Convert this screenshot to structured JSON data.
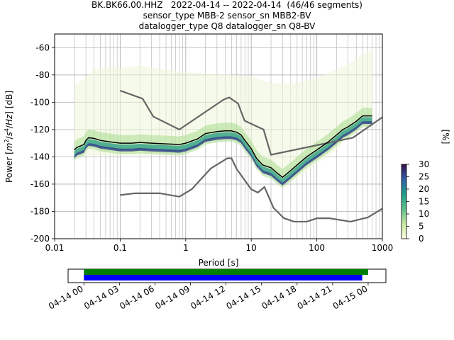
{
  "figure": {
    "title_lines": [
      "BK.BK66.00.HHZ   2022-04-14 -- 2022-04-14  (46/46 segments)",
      "sensor_type MBB-2 sensor_sn MBB2-BV",
      "datalogger_type Q8 datalogger_sn Q8-BV"
    ]
  },
  "chart_data": [
    {
      "type": "heatmap",
      "subtype": "probabilistic power spectral density",
      "xlabel": "Period [s]",
      "ylabel": "Power [$m^2/s^4/Hz$] [dB]",
      "x_scale": "log",
      "xlim": [
        0.01,
        1000
      ],
      "ylim": [
        -200,
        -50
      ],
      "x_tick_labels": [
        "0.01",
        "0.1",
        "1",
        "10",
        "100",
        "1000"
      ],
      "y_tick_labels": [
        "-200",
        "-180",
        "-160",
        "-140",
        "-120",
        "-100",
        "-80",
        "-60"
      ],
      "grid": true,
      "colorbar": {
        "label": "[%]",
        "range": [
          0,
          30
        ],
        "tick_labels": [
          "0",
          "5",
          "10",
          "15",
          "20",
          "25",
          "30"
        ],
        "colormap": "cubehelix reversed (light yellow-green to dark purple)"
      },
      "mode_curve": {
        "name": "mode",
        "color": "#000000",
        "points": [
          [
            0.02,
            -135
          ],
          [
            0.022,
            -133
          ],
          [
            0.025,
            -132
          ],
          [
            0.028,
            -131
          ],
          [
            0.03,
            -128
          ],
          [
            0.033,
            -126
          ],
          [
            0.04,
            -126.5
          ],
          [
            0.05,
            -128
          ],
          [
            0.07,
            -129
          ],
          [
            0.1,
            -130
          ],
          [
            0.15,
            -130
          ],
          [
            0.2,
            -129.5
          ],
          [
            0.3,
            -130
          ],
          [
            0.5,
            -130.5
          ],
          [
            0.8,
            -131
          ],
          [
            1.0,
            -130
          ],
          [
            1.5,
            -127
          ],
          [
            2.0,
            -123
          ],
          [
            3.0,
            -121.5
          ],
          [
            4.0,
            -121
          ],
          [
            5.0,
            -121
          ],
          [
            6.0,
            -122
          ],
          [
            7.0,
            -124
          ],
          [
            8.0,
            -128
          ],
          [
            10.0,
            -134
          ],
          [
            12.0,
            -141
          ],
          [
            15.0,
            -146
          ],
          [
            20.0,
            -148
          ],
          [
            25.0,
            -152
          ],
          [
            30.0,
            -155
          ],
          [
            40.0,
            -150
          ],
          [
            50.0,
            -146
          ],
          [
            70.0,
            -140
          ],
          [
            100.0,
            -135
          ],
          [
            150.0,
            -129
          ],
          [
            200.0,
            -124
          ],
          [
            250.0,
            -120
          ],
          [
            300.0,
            -118
          ],
          [
            400.0,
            -114
          ],
          [
            500.0,
            -110
          ],
          [
            700.0,
            -110
          ]
        ]
      },
      "noise_models": [
        {
          "name": "NHNM",
          "color": "#666666",
          "points": [
            [
              0.1,
              -91.5
            ],
            [
              0.22,
              -97.4
            ],
            [
              0.32,
              -110.5
            ],
            [
              0.8,
              -120
            ],
            [
              3.8,
              -98
            ],
            [
              4.6,
              -96.5
            ],
            [
              6.3,
              -101
            ],
            [
              7.9,
              -113.5
            ],
            [
              15.4,
              -120
            ],
            [
              20,
              -138.5
            ],
            [
              354.8,
              -126
            ],
            [
              1000,
              -111
            ]
          ]
        },
        {
          "name": "NLNM",
          "color": "#666666",
          "points": [
            [
              0.1,
              -168
            ],
            [
              0.17,
              -166.7
            ],
            [
              0.4,
              -166.7
            ],
            [
              0.8,
              -169.2
            ],
            [
              1.24,
              -163.7
            ],
            [
              2.4,
              -148.6
            ],
            [
              4.3,
              -141.1
            ],
            [
              5.0,
              -141.1
            ],
            [
              6.0,
              -149
            ],
            [
              10.0,
              -163.8
            ],
            [
              12.6,
              -166.2
            ],
            [
              15.9,
              -162.1
            ],
            [
              21.9,
              -177.5
            ],
            [
              31.6,
              -185
            ],
            [
              45,
              -187.5
            ],
            [
              70,
              -187.5
            ],
            [
              101,
              -185
            ],
            [
              154,
              -185
            ],
            [
              328,
              -187.5
            ],
            [
              600,
              -184.4
            ],
            [
              1000,
              -178
            ]
          ]
        }
      ],
      "density_band": {
        "name": "PSD histogram extent",
        "points_upper": [
          [
            0.02,
            -88
          ],
          [
            0.03,
            -82
          ],
          [
            0.04,
            -76
          ],
          [
            0.07,
            -74
          ],
          [
            0.1,
            -75
          ],
          [
            0.2,
            -73
          ],
          [
            0.5,
            -76
          ],
          [
            1,
            -78
          ],
          [
            2,
            -79
          ],
          [
            5,
            -80
          ],
          [
            10,
            -81
          ],
          [
            20,
            -86
          ],
          [
            30,
            -86
          ],
          [
            50,
            -86
          ],
          [
            100,
            -82
          ],
          [
            200,
            -76
          ],
          [
            300,
            -72
          ],
          [
            500,
            -65
          ],
          [
            700,
            -62
          ]
        ],
        "points_lower": [
          [
            0.02,
            -139
          ],
          [
            0.03,
            -139
          ],
          [
            0.05,
            -139
          ],
          [
            0.1,
            -139
          ],
          [
            0.3,
            -139
          ],
          [
            1,
            -138
          ],
          [
            2,
            -130
          ],
          [
            5,
            -127
          ],
          [
            8,
            -133
          ],
          [
            10,
            -138
          ],
          [
            15,
            -148
          ],
          [
            20,
            -152
          ],
          [
            30,
            -159
          ],
          [
            50,
            -156
          ],
          [
            100,
            -145
          ],
          [
            200,
            -135
          ],
          [
            300,
            -125
          ],
          [
            700,
            -114
          ]
        ]
      }
    },
    {
      "type": "timeline",
      "x_tick_labels": [
        "04-14 00",
        "04-14 03",
        "04-14 06",
        "04-14 09",
        "04-14 12",
        "04-14 15",
        "04-14 18",
        "04-14 21",
        "04-15 00"
      ],
      "xlim": [
        "2022-04-13T22:40",
        "2022-04-15T01:30"
      ],
      "bars": [
        {
          "name": "data coverage",
          "color": "#008000",
          "start": "2022-04-14T00:00",
          "end": "2022-04-15T00:00"
        },
        {
          "name": "used PSD segments",
          "color": "#0000ff",
          "start": "2022-04-14T00:00",
          "end": "2022-04-14T23:30"
        }
      ]
    }
  ]
}
